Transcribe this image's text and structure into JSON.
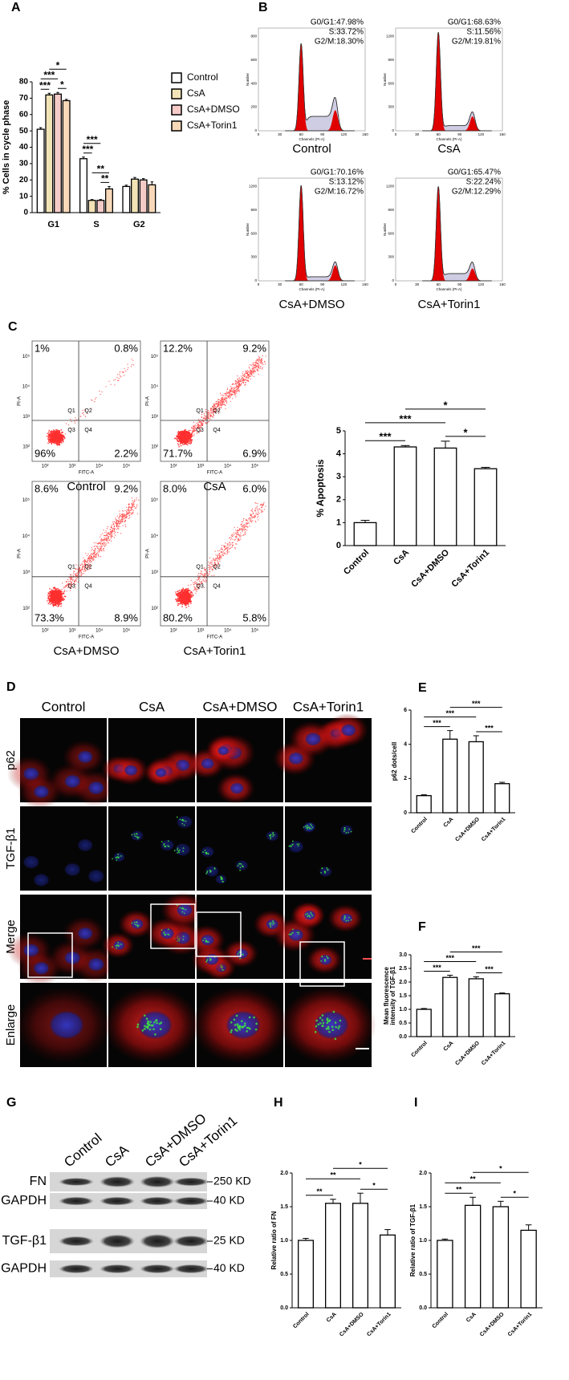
{
  "panel_labels": [
    "A",
    "B",
    "C",
    "D",
    "E",
    "F",
    "G",
    "H",
    "I"
  ],
  "chart_data": [
    {
      "type": "bar",
      "y_label": "% Cells in  cycle phase",
      "categories": [
        "G1",
        "S",
        "G2"
      ],
      "series": [
        {
          "name": "Control",
          "color": "#ffffff",
          "values": [
            51,
            33,
            16
          ],
          "errors": [
            1,
            1,
            0.8
          ]
        },
        {
          "name": "CsA",
          "color": "#f2e3b6",
          "values": [
            72,
            7.5,
            20.5
          ],
          "errors": [
            1,
            0.5,
            1
          ]
        },
        {
          "name": "CsA+DMSO",
          "color": "#f5cbc8",
          "values": [
            72.5,
            7.5,
            20
          ],
          "errors": [
            1,
            0.5,
            0.8
          ]
        },
        {
          "name": "CsA+Torin1",
          "color": "#f7d8b8",
          "values": [
            68.5,
            14.5,
            17
          ],
          "errors": [
            0.8,
            1.5,
            1.8
          ]
        }
      ],
      "ylim": [
        0,
        80
      ],
      "yticks": [
        0,
        10,
        20,
        30,
        40,
        50,
        60,
        70,
        80
      ],
      "annotations": [
        "*",
        "***",
        "***",
        "*",
        "***",
        "***",
        "**",
        "**"
      ]
    },
    {
      "type": "bar",
      "y_label": "% Apoptosis",
      "categories": [
        "Control",
        "CsA",
        "CsA+DMSO",
        "CsA+Torin1"
      ],
      "values": [
        1.0,
        4.3,
        4.25,
        3.35
      ],
      "errors": [
        0.1,
        0.06,
        0.3,
        0.06
      ],
      "color": "#ffffff",
      "ylim": [
        0,
        5
      ],
      "yticks": [
        0,
        1,
        2,
        3,
        4,
        5
      ],
      "annotations": [
        "*",
        "***",
        "***",
        "*"
      ]
    },
    {
      "type": "bar",
      "y_label": "p62 dots/cell",
      "categories": [
        "Control",
        "CsA",
        "CsA+DMSO",
        "CsA+Torin1"
      ],
      "values": [
        1.0,
        4.3,
        4.15,
        1.7
      ],
      "errors": [
        0.05,
        0.5,
        0.35,
        0.08
      ],
      "color": "#ffffff",
      "ylim": [
        0,
        6
      ],
      "yticks": [
        0,
        2,
        4,
        6
      ],
      "annotations": [
        "***",
        "***",
        "***",
        "***"
      ]
    },
    {
      "type": "bar",
      "y_label": [
        "Mean fluorescence",
        "intensity of TGF-β1"
      ],
      "categories": [
        "Control",
        "CsA",
        "CsA+DMSO",
        "CsA+Torin1"
      ],
      "values": [
        1.0,
        2.17,
        2.12,
        1.57
      ],
      "errors": [
        0.03,
        0.08,
        0.07,
        0.03
      ],
      "color": "#ffffff",
      "ylim": [
        0,
        3
      ],
      "yticks": [
        {
          "value": 0,
          "label": "0.0"
        },
        0.5,
        {
          "value": 1,
          "label": "1.0"
        },
        1.5,
        {
          "value": 2,
          "label": "2.0"
        },
        2.5,
        {
          "value": 3,
          "label": "3.0"
        }
      ],
      "annotations": [
        "***",
        "***",
        "***",
        "***"
      ]
    },
    {
      "type": "bar",
      "y_label": "Relative ratio of FN",
      "categories": [
        "Control",
        "CsA",
        "CsA+DMSO",
        "CsA+Torin1"
      ],
      "values": [
        1.0,
        1.55,
        1.55,
        1.08
      ],
      "errors": [
        0.03,
        0.06,
        0.15,
        0.08
      ],
      "color": "#ffffff",
      "ylim": [
        0,
        2
      ],
      "yticks": [
        {
          "value": 0,
          "label": "0.0"
        },
        0.5,
        {
          "value": 1,
          "label": "1.0"
        },
        1.5,
        {
          "value": 2,
          "label": "2.0"
        }
      ],
      "annotations": [
        "*",
        "**",
        "**",
        "*"
      ]
    },
    {
      "type": "bar",
      "y_label": "Relative ratio of TGF-β1",
      "categories": [
        "Control",
        "CsA",
        "CsA+DMSO",
        "CsA+Torin1"
      ],
      "values": [
        1.0,
        1.52,
        1.5,
        1.15
      ],
      "errors": [
        0.02,
        0.12,
        0.08,
        0.08
      ],
      "color": "#ffffff",
      "ylim": [
        0,
        2
      ],
      "yticks": [
        {
          "value": 0,
          "label": "0.0"
        },
        0.5,
        {
          "value": 1,
          "label": "1.0"
        },
        1.5,
        {
          "value": 2,
          "label": "2.0"
        }
      ],
      "annotations": [
        "*",
        "**",
        "**",
        "*"
      ]
    }
  ],
  "cell_cycle": {
    "x_label": "Channels (PI-A)",
    "y_label": "Number",
    "x_ticks": [
      "0",
      "30",
      "60",
      "90",
      "120",
      "150"
    ],
    "plots": [
      {
        "name": "Control",
        "g0g1": "G0/G1:47.98%",
        "s": "S:33.72%",
        "g2m": "G2/M:18.30%",
        "y_ticks": [
          "0",
          "200",
          "400",
          "600",
          "800"
        ]
      },
      {
        "name": "CsA",
        "g0g1": "G0/G1:68.63%",
        "s": "S:11.56%",
        "g2m": "G2/M:19.81%",
        "y_ticks": [
          "0",
          "300",
          "600",
          "900",
          "1200"
        ]
      },
      {
        "name": "CsA+DMSO",
        "g0g1": "G0/G1:70.16%",
        "s": "S:13.12%",
        "g2m": "G2/M:16.72%",
        "y_ticks": [
          "0",
          "300",
          "600",
          "900",
          "1200"
        ]
      },
      {
        "name": "CsA+Torin1",
        "g0g1": "G0/G1:65.47%",
        "s": "S:22.24%",
        "g2m": "G2/M:12.29%",
        "y_ticks": [
          "0",
          "300",
          "600",
          "900",
          "1200"
        ]
      }
    ]
  },
  "apoptosis_plots": {
    "x_label": "FITC-A",
    "y_label": "PI-A",
    "quadrants": [
      "Q1",
      "Q2",
      "Q3",
      "Q4"
    ],
    "ticks": [
      "10²",
      "10³",
      "10⁴",
      "10⁵"
    ],
    "plots": [
      {
        "name": "Control",
        "upper_left": "1%",
        "upper_right": "0.8%",
        "lower_left": "96%",
        "lower_right": "2.2%"
      },
      {
        "name": "CsA",
        "upper_left": "12.2%",
        "upper_right": "9.2%",
        "lower_left": "71.7%",
        "lower_right": "6.9%"
      },
      {
        "name": "CsA+DMSO",
        "upper_left": "8.6%",
        "upper_right": "9.2%",
        "lower_left": "73.3%",
        "lower_right": "8.9%"
      },
      {
        "name": "CsA+Torin1",
        "upper_left": "8.0%",
        "upper_right": "6.0%",
        "lower_left": "80.2%",
        "lower_right": "5.8%"
      }
    ]
  },
  "immunofluorescence": {
    "columns": [
      "Control",
      "CsA",
      "CsA+DMSO",
      "CsA+Torin1"
    ],
    "rows": [
      "p62",
      "TGF-β1",
      "Merge",
      "Enlarge"
    ]
  },
  "western_blot": {
    "lanes": [
      "Control",
      "CsA",
      "CsA+DMSO",
      "CsA+Torin1"
    ],
    "rows": [
      {
        "label": "FN",
        "size": "250 KD"
      },
      {
        "label": "GAPDH",
        "size": "40 KD"
      },
      {
        "label": "TGF-β1",
        "size": "25 KD"
      },
      {
        "label": "GAPDH",
        "size": "40 KD"
      }
    ]
  }
}
